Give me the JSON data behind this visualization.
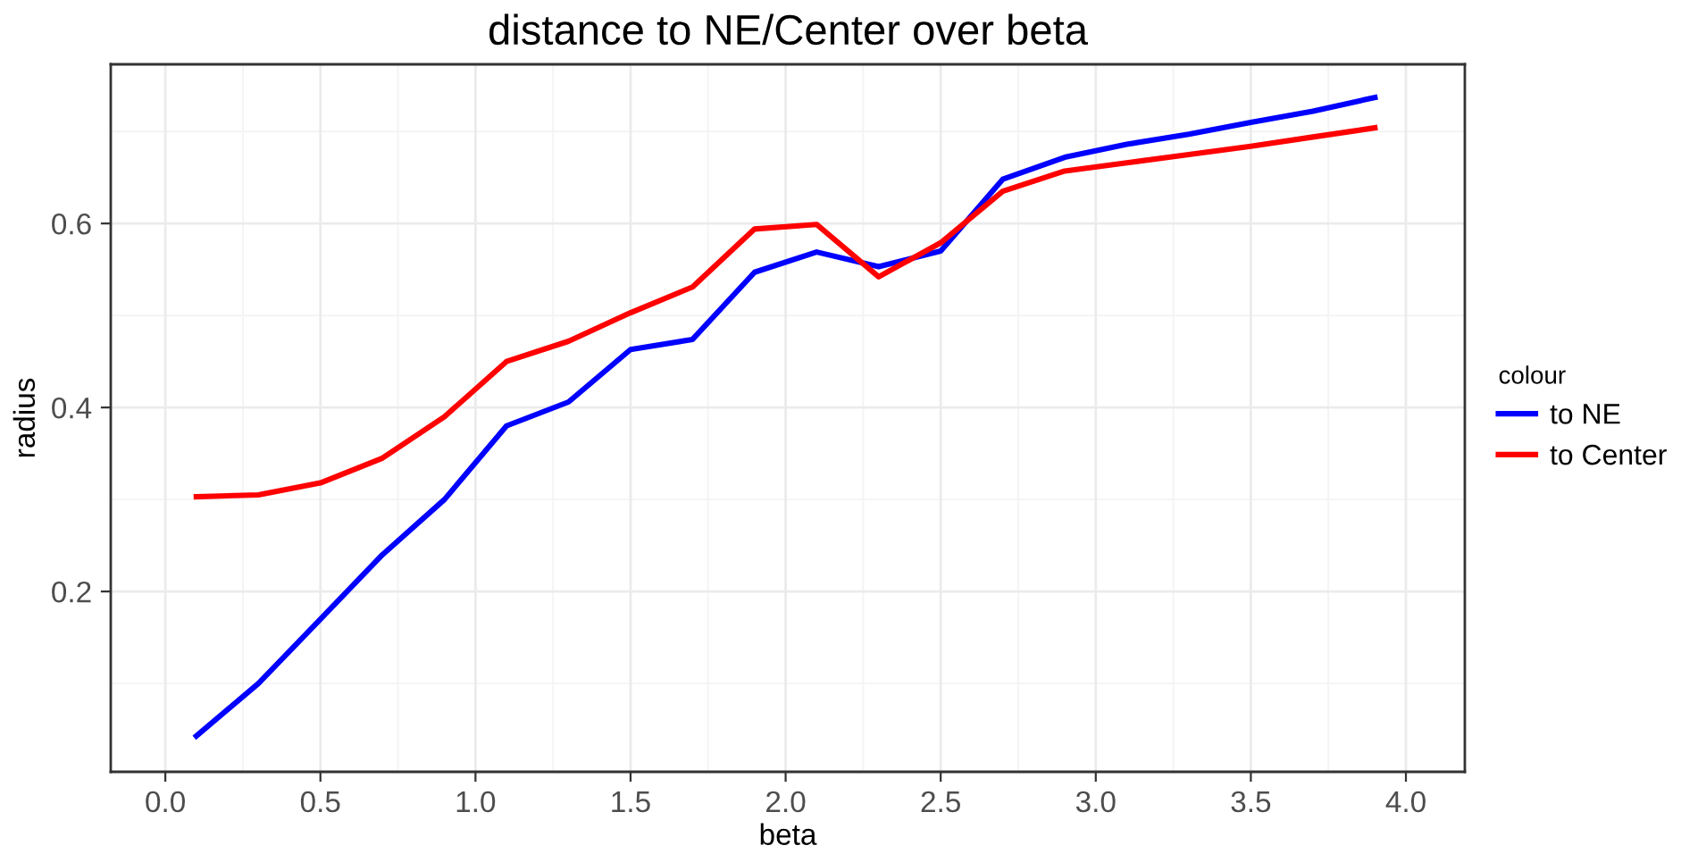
{
  "chart_data": {
    "type": "line",
    "title": "distance to NE/Center over beta",
    "xlabel": "beta",
    "ylabel": "radius",
    "legend_title": "colour",
    "legend": "right",
    "grid": true,
    "line_style": "solid",
    "marker": "none",
    "x": [
      0.1,
      0.3,
      0.5,
      0.7,
      0.9,
      1.1,
      1.3,
      1.5,
      1.7,
      1.9,
      2.1,
      2.3,
      2.5,
      2.7,
      2.9,
      3.1,
      3.3,
      3.5,
      3.7,
      3.9
    ],
    "series": [
      {
        "name": "to NE",
        "color": "#0000ff",
        "values": [
          0.043,
          0.1,
          0.17,
          0.24,
          0.3,
          0.38,
          0.406,
          0.463,
          0.474,
          0.547,
          0.569,
          0.553,
          0.57,
          0.648,
          0.672,
          0.686,
          0.697,
          0.71,
          0.722,
          0.737
        ]
      },
      {
        "name": "to Center",
        "color": "#ff0000",
        "values": [
          0.303,
          0.305,
          0.318,
          0.345,
          0.39,
          0.45,
          0.472,
          0.503,
          0.531,
          0.594,
          0.599,
          0.542,
          0.579,
          0.635,
          0.657,
          0.666,
          0.675,
          0.684,
          0.694,
          0.704
        ]
      }
    ],
    "xlim": [
      -0.176,
      4.19
    ],
    "ylim": [
      0.004,
      0.773
    ],
    "xticks": [
      {
        "value": 0,
        "label": "0.0"
      },
      0.5,
      {
        "value": 1,
        "label": "1.0"
      },
      1.5,
      {
        "value": 2,
        "label": "2.0"
      },
      2.5,
      {
        "value": 3,
        "label": "3.0"
      },
      3.5,
      {
        "value": 4,
        "label": "4.0"
      }
    ],
    "yticks": [
      0.2,
      0.4,
      0.6
    ]
  }
}
